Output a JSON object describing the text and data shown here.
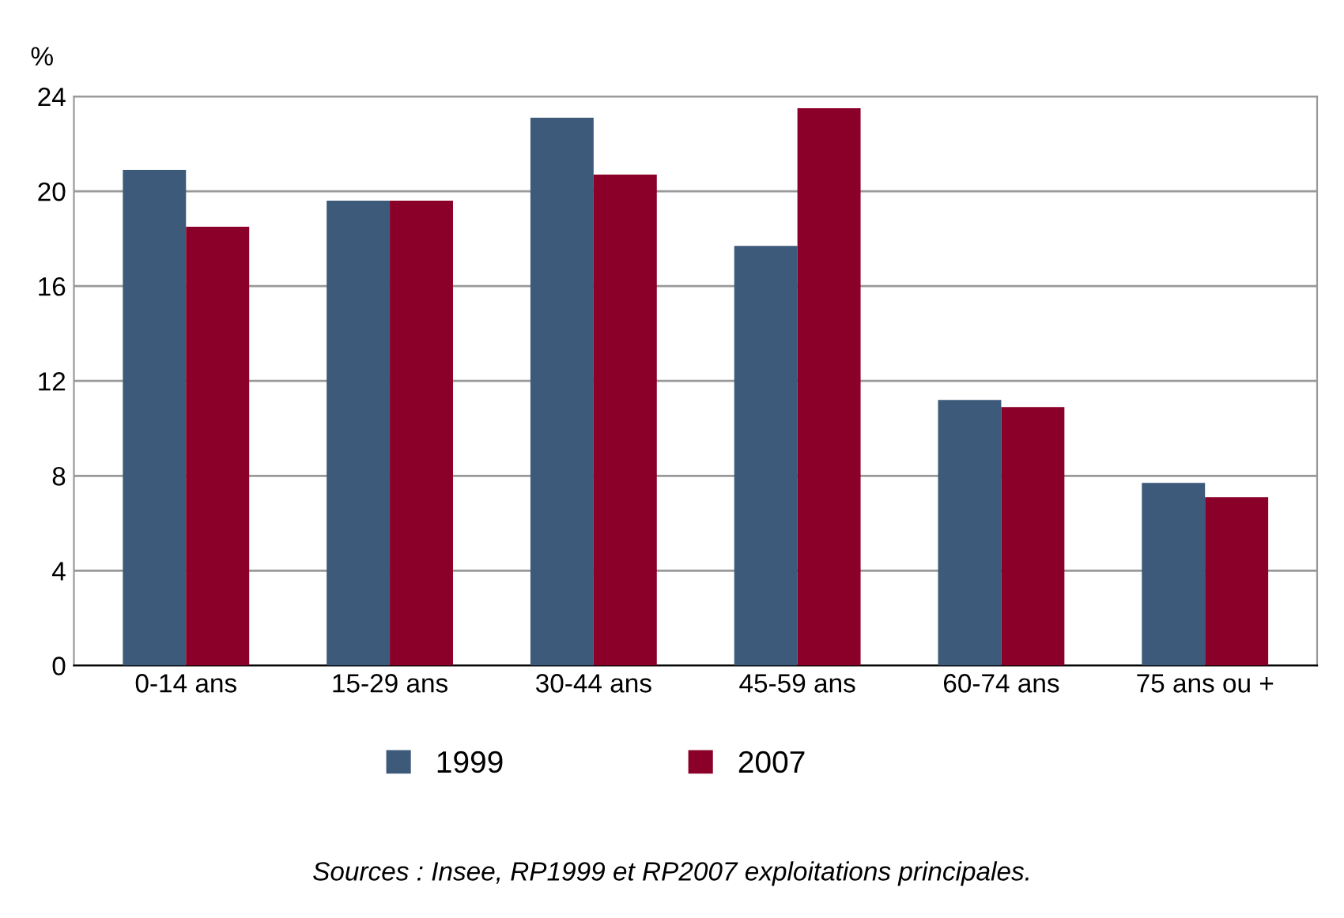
{
  "chart_data": {
    "type": "bar",
    "ylabel": "%",
    "categories": [
      "0-14 ans",
      "15-29 ans",
      "30-44 ans",
      "45-59 ans",
      "60-74 ans",
      "75 ans ou +"
    ],
    "series": [
      {
        "name": "1999",
        "color": "#3d5a7a",
        "values": [
          20.9,
          19.6,
          23.1,
          17.7,
          11.2,
          7.7
        ]
      },
      {
        "name": "2007",
        "color": "#8b0028",
        "values": [
          18.5,
          19.6,
          20.7,
          23.5,
          10.9,
          7.1
        ]
      }
    ],
    "ylim": [
      0,
      24
    ],
    "yticks": [
      0,
      4,
      8,
      12,
      16,
      20,
      24
    ],
    "grid": "y",
    "legend": "bottom",
    "annotations": [
      "Sources : Insee, RP1999 et RP2007 exploitations principales."
    ]
  }
}
